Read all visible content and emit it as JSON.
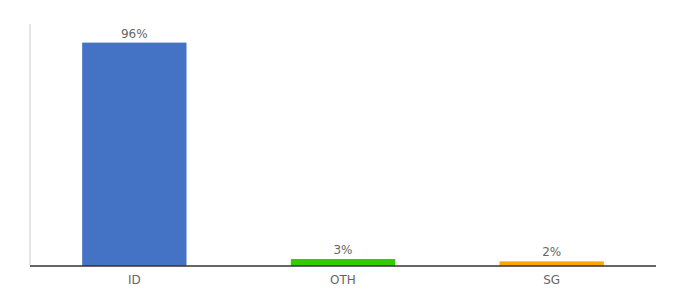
{
  "chart_data": {
    "type": "bar",
    "categories": [
      "ID",
      "OTH",
      "SG"
    ],
    "values": [
      96,
      3,
      2
    ],
    "value_labels": [
      "96%",
      "3%",
      "2%"
    ],
    "colors": [
      "#4472C4",
      "#33CC00",
      "#FFA500"
    ],
    "ylim": [
      0,
      104
    ],
    "data_labels": true,
    "tick_labels": "x",
    "grid": false
  }
}
